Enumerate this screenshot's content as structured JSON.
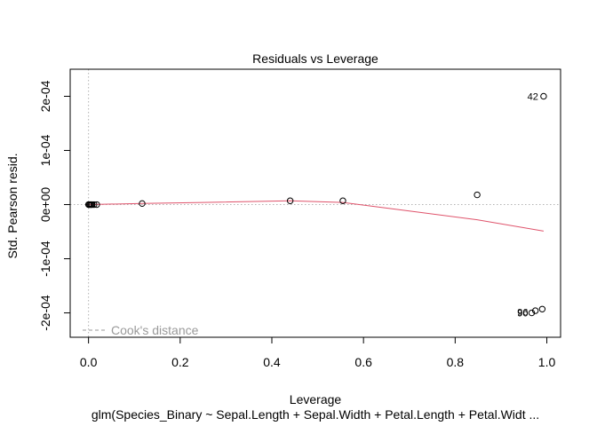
{
  "chart_data": {
    "type": "scatter",
    "title": "Residuals vs Leverage",
    "xlabel": "Leverage",
    "ylabel": "Std. Pearson resid.",
    "subtitle": "glm(Species_Binary ~ Sepal.Length + Sepal.Width + Petal.Length + Petal.Widt ...",
    "xlim": [
      -0.04,
      1.03
    ],
    "ylim": [
      -0.000245,
      0.00025
    ],
    "x_ticks": [
      {
        "value": 0.0,
        "label": "0.0"
      },
      {
        "value": 0.2,
        "label": "0.2"
      },
      {
        "value": 0.4,
        "label": "0.4"
      },
      {
        "value": 0.6,
        "label": "0.6"
      },
      {
        "value": 0.8,
        "label": "0.8"
      },
      {
        "value": 1.0,
        "label": "1.0"
      }
    ],
    "y_ticks": [
      {
        "value": -0.0002,
        "label": "-2e-04"
      },
      {
        "value": -0.0001,
        "label": "-1e-04"
      },
      {
        "value": 0.0,
        "label": "0e+00"
      },
      {
        "value": 0.0001,
        "label": "1e-04"
      },
      {
        "value": 0.0002,
        "label": "2e-04"
      }
    ],
    "points": [
      {
        "x": 0.0,
        "y": 0.0
      },
      {
        "x": 0.002,
        "y": 0.0
      },
      {
        "x": 0.004,
        "y": 0.0
      },
      {
        "x": 0.006,
        "y": 0.0
      },
      {
        "x": 0.008,
        "y": 0.0
      },
      {
        "x": 0.012,
        "y": 0.0
      },
      {
        "x": 0.018,
        "y": 0.0
      },
      {
        "x": 0.117,
        "y": 2e-06
      },
      {
        "x": 0.44,
        "y": 7e-06
      },
      {
        "x": 0.555,
        "y": 7e-06
      },
      {
        "x": 0.848,
        "y": 1.8e-05
      },
      {
        "x": 0.993,
        "y": 0.0002,
        "label": "42"
      },
      {
        "x": 0.99,
        "y": -0.000193
      },
      {
        "x": 0.975,
        "y": -0.000196
      },
      {
        "x": 0.967,
        "y": -0.0002
      }
    ],
    "stacked_labels": [
      {
        "x": 0.967,
        "y": -0.000198,
        "text": "96"
      },
      {
        "x": 0.967,
        "y": -0.0002,
        "text": "90"
      }
    ],
    "smooth_line": {
      "color": "#df536b",
      "points": [
        [
          0.0,
          0.0
        ],
        [
          0.117,
          2e-06
        ],
        [
          0.25,
          4e-06
        ],
        [
          0.44,
          7e-06
        ],
        [
          0.555,
          4e-06
        ],
        [
          0.7,
          -1.2e-05
        ],
        [
          0.848,
          -2.8e-05
        ],
        [
          0.993,
          -4.9e-05
        ]
      ]
    },
    "reference_lines": {
      "h": 0,
      "v": 0,
      "color": "#b3b3b3"
    },
    "legend": {
      "text": "Cook's distance",
      "position": "bottom-left",
      "color": "#9a9a9a"
    }
  }
}
